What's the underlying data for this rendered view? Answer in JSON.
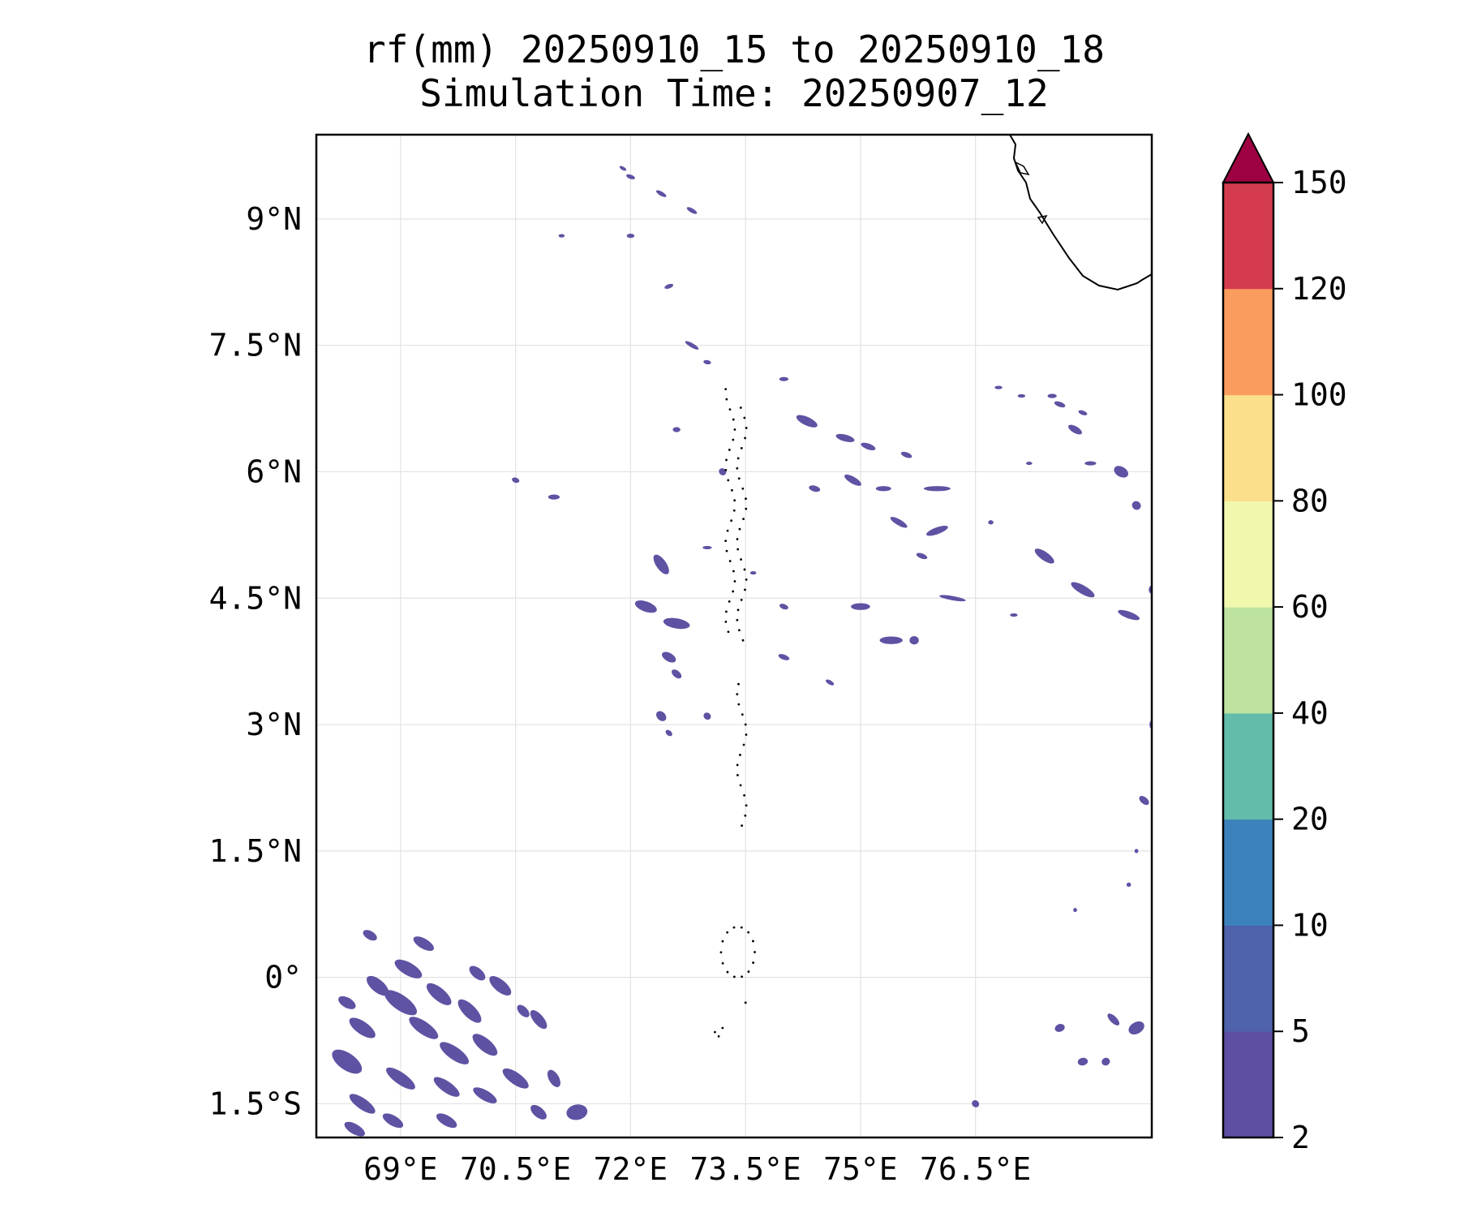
{
  "title": {
    "line1": "rf(mm) 20250910_15 to 20250910_18",
    "line2": "Simulation Time: 20250907_12"
  },
  "map": {
    "lon_range": [
      67.9,
      78.8
    ],
    "lat_range": [
      -1.9,
      10.0
    ],
    "lon_ticks": [
      {
        "value": 69.0,
        "label": "69°E"
      },
      {
        "value": 70.5,
        "label": "70.5°E"
      },
      {
        "value": 72.0,
        "label": "72°E"
      },
      {
        "value": 73.5,
        "label": "73.5°E"
      },
      {
        "value": 75.0,
        "label": "75°E"
      },
      {
        "value": 76.5,
        "label": "76.5°E"
      }
    ],
    "lat_ticks": [
      {
        "value": 9.0,
        "label": "9°N"
      },
      {
        "value": 7.5,
        "label": "7.5°N"
      },
      {
        "value": 6.0,
        "label": "6°N"
      },
      {
        "value": 4.5,
        "label": "4.5°N"
      },
      {
        "value": 3.0,
        "label": "3°N"
      },
      {
        "value": 1.5,
        "label": "1.5°N"
      },
      {
        "value": 0.0,
        "label": "0°"
      },
      {
        "value": -1.5,
        "label": "1.5°S"
      }
    ],
    "gridlines": true,
    "rain_color": "#5e52a3",
    "rain_cells": [
      [
        68.3,
        -1.0,
        0.45,
        0.2,
        35
      ],
      [
        68.5,
        -0.6,
        0.4,
        0.15,
        35
      ],
      [
        68.7,
        -0.1,
        0.35,
        0.15,
        40
      ],
      [
        69.0,
        -0.3,
        0.5,
        0.18,
        35
      ],
      [
        69.1,
        0.1,
        0.4,
        0.15,
        30
      ],
      [
        69.3,
        -0.6,
        0.45,
        0.15,
        35
      ],
      [
        69.5,
        -0.2,
        0.4,
        0.15,
        40
      ],
      [
        69.7,
        -0.9,
        0.45,
        0.15,
        35
      ],
      [
        69.9,
        -0.4,
        0.4,
        0.15,
        45
      ],
      [
        70.1,
        -0.8,
        0.4,
        0.15,
        40
      ],
      [
        70.3,
        -0.1,
        0.35,
        0.14,
        40
      ],
      [
        70.5,
        -1.2,
        0.4,
        0.14,
        35
      ],
      [
        70.1,
        -1.4,
        0.35,
        0.12,
        30
      ],
      [
        69.6,
        -1.3,
        0.4,
        0.13,
        35
      ],
      [
        69.0,
        -1.2,
        0.45,
        0.14,
        35
      ],
      [
        68.5,
        -1.5,
        0.4,
        0.13,
        35
      ],
      [
        68.4,
        -1.8,
        0.3,
        0.12,
        30
      ],
      [
        68.9,
        -1.7,
        0.3,
        0.12,
        30
      ],
      [
        70.8,
        -0.5,
        0.3,
        0.12,
        50
      ],
      [
        71.0,
        -1.2,
        0.25,
        0.12,
        60
      ],
      [
        71.3,
        -1.6,
        0.2,
        0.25,
        80
      ],
      [
        69.3,
        0.4,
        0.3,
        0.12,
        30
      ],
      [
        68.6,
        0.5,
        0.2,
        0.1,
        30
      ],
      [
        70.0,
        0.05,
        0.25,
        0.12,
        40
      ],
      [
        70.8,
        -1.6,
        0.25,
        0.12,
        40
      ],
      [
        68.3,
        -0.3,
        0.25,
        0.12,
        30
      ],
      [
        69.6,
        -1.7,
        0.3,
        0.12,
        30
      ],
      [
        70.6,
        -0.4,
        0.2,
        0.1,
        45
      ],
      [
        72.4,
        4.9,
        0.3,
        0.12,
        55
      ],
      [
        72.2,
        4.4,
        0.3,
        0.12,
        20
      ],
      [
        72.6,
        4.2,
        0.35,
        0.12,
        10
      ],
      [
        72.5,
        3.8,
        0.2,
        0.1,
        30
      ],
      [
        72.4,
        3.1,
        0.15,
        0.1,
        45
      ],
      [
        72.6,
        3.6,
        0.15,
        0.08,
        40
      ],
      [
        71.0,
        5.7,
        0.15,
        0.06,
        0
      ],
      [
        70.5,
        5.9,
        0.1,
        0.06,
        20
      ],
      [
        72.6,
        6.5,
        0.1,
        0.06,
        0
      ],
      [
        73.2,
        6.0,
        0.1,
        0.08,
        40
      ],
      [
        74.0,
        7.1,
        0.12,
        0.05,
        0
      ],
      [
        74.3,
        6.6,
        0.3,
        0.1,
        25
      ],
      [
        74.8,
        6.4,
        0.25,
        0.08,
        15
      ],
      [
        75.1,
        6.3,
        0.2,
        0.07,
        20
      ],
      [
        75.6,
        6.2,
        0.15,
        0.06,
        20
      ],
      [
        74.9,
        5.9,
        0.25,
        0.08,
        30
      ],
      [
        74.4,
        5.8,
        0.15,
        0.07,
        15
      ],
      [
        75.3,
        5.8,
        0.2,
        0.06,
        0
      ],
      [
        76.0,
        5.8,
        0.35,
        0.06,
        0
      ],
      [
        75.5,
        5.4,
        0.25,
        0.07,
        30
      ],
      [
        76.0,
        5.3,
        0.3,
        0.08,
        -20
      ],
      [
        75.8,
        5.0,
        0.15,
        0.06,
        20
      ],
      [
        75.0,
        4.4,
        0.25,
        0.08,
        0
      ],
      [
        75.4,
        4.0,
        0.3,
        0.09,
        0
      ],
      [
        75.7,
        4.0,
        0.12,
        0.1,
        0
      ],
      [
        74.0,
        3.8,
        0.15,
        0.06,
        20
      ],
      [
        74.6,
        3.5,
        0.12,
        0.05,
        30
      ],
      [
        76.2,
        4.5,
        0.35,
        0.05,
        10
      ],
      [
        77.4,
        5.0,
        0.3,
        0.1,
        35
      ],
      [
        77.9,
        4.6,
        0.35,
        0.1,
        30
      ],
      [
        78.5,
        4.3,
        0.3,
        0.08,
        20
      ],
      [
        77.8,
        6.5,
        0.2,
        0.08,
        30
      ],
      [
        78.4,
        6.0,
        0.2,
        0.12,
        30
      ],
      [
        78.6,
        5.6,
        0.12,
        0.1,
        40
      ],
      [
        76.8,
        7.0,
        0.1,
        0.04,
        0
      ],
      [
        77.1,
        6.9,
        0.1,
        0.04,
        0
      ],
      [
        77.5,
        6.9,
        0.12,
        0.05,
        0
      ],
      [
        77.6,
        6.8,
        0.15,
        0.06,
        20
      ],
      [
        77.9,
        6.7,
        0.12,
        0.05,
        20
      ],
      [
        78.0,
        6.1,
        0.15,
        0.05,
        0
      ],
      [
        77.2,
        6.1,
        0.08,
        0.04,
        0
      ],
      [
        76.7,
        5.4,
        0.07,
        0.05,
        0
      ],
      [
        78.7,
        2.1,
        0.15,
        0.08,
        40
      ],
      [
        78.3,
        -0.5,
        0.2,
        0.08,
        45
      ],
      [
        78.6,
        -0.6,
        0.15,
        0.2,
        60
      ],
      [
        77.6,
        -0.6,
        0.1,
        0.12,
        70
      ],
      [
        77.9,
        -1.0,
        0.1,
        0.12,
        80
      ],
      [
        78.2,
        -1.0,
        0.1,
        0.1,
        70
      ],
      [
        76.5,
        -1.5,
        0.1,
        0.08,
        40
      ],
      [
        72.5,
        8.2,
        0.12,
        0.05,
        -20
      ],
      [
        72.0,
        8.8,
        0.1,
        0.05,
        0
      ],
      [
        71.1,
        8.8,
        0.08,
        0.04,
        0
      ],
      [
        72.0,
        9.5,
        0.12,
        0.05,
        20
      ],
      [
        72.4,
        9.3,
        0.15,
        0.05,
        30
      ],
      [
        72.8,
        9.1,
        0.15,
        0.05,
        30
      ],
      [
        71.9,
        9.6,
        0.1,
        0.04,
        30
      ],
      [
        73.0,
        7.3,
        0.1,
        0.05,
        10
      ],
      [
        72.8,
        7.5,
        0.2,
        0.05,
        30
      ],
      [
        73.0,
        5.1,
        0.12,
        0.04,
        0
      ],
      [
        73.6,
        4.8,
        0.08,
        0.04,
        0
      ],
      [
        74.0,
        4.4,
        0.12,
        0.06,
        20
      ],
      [
        73.0,
        3.1,
        0.1,
        0.08,
        40
      ],
      [
        72.5,
        2.9,
        0.1,
        0.06,
        40
      ],
      [
        78.8,
        3.0,
        0.06,
        0.1,
        0
      ],
      [
        78.8,
        4.6,
        0.08,
        0.1,
        0
      ],
      [
        78.6,
        1.5,
        0.05,
        0.05,
        0
      ],
      [
        78.5,
        1.1,
        0.06,
        0.05,
        0
      ],
      [
        77.8,
        0.8,
        0.05,
        0.05,
        0
      ],
      [
        77.0,
        4.3,
        0.1,
        0.04,
        0
      ]
    ]
  },
  "colorbar": {
    "levels": [
      2,
      5,
      10,
      20,
      40,
      60,
      80,
      100,
      120,
      150
    ],
    "colors": [
      "#5e4fa2",
      "#4f62ac",
      "#3b82bc",
      "#63bcaa",
      "#bee3a0",
      "#f1f8ae",
      "#fbdf8b",
      "#f99c5d",
      "#d43c4e"
    ],
    "extend_color": "#9e0142",
    "tick_labels": [
      "2",
      "5",
      "10",
      "20",
      "40",
      "60",
      "80",
      "100",
      "120",
      "150"
    ]
  }
}
